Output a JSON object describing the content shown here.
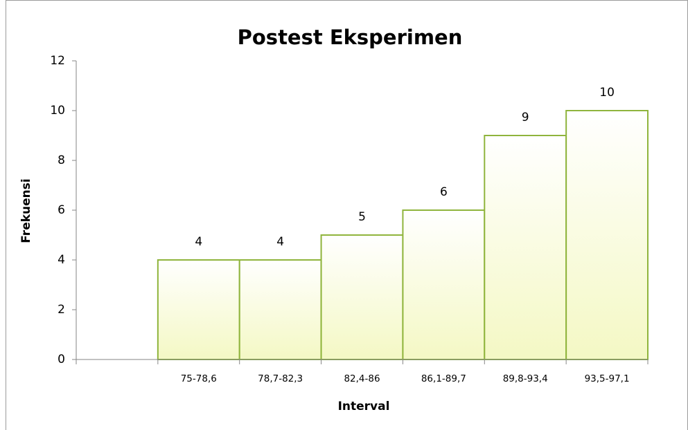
{
  "chart_data": {
    "type": "bar",
    "title": "Postest Eksperimen",
    "x_label": "Interval",
    "y_label": "Frekuensi",
    "categories": [
      null,
      "75-78,6",
      "78,7-82,3",
      "82,4-86",
      "86,1-89,7",
      "89,8-93,4",
      "93,5-97,1"
    ],
    "values": [
      null,
      4,
      4,
      5,
      6,
      9,
      10
    ],
    "color": "#f4f8c4",
    "edge_color": "#8fb43c",
    "ylim": [
      0,
      12
    ],
    "yticks": [
      0,
      2,
      4,
      6,
      8,
      10,
      12
    ],
    "grid": false
  }
}
